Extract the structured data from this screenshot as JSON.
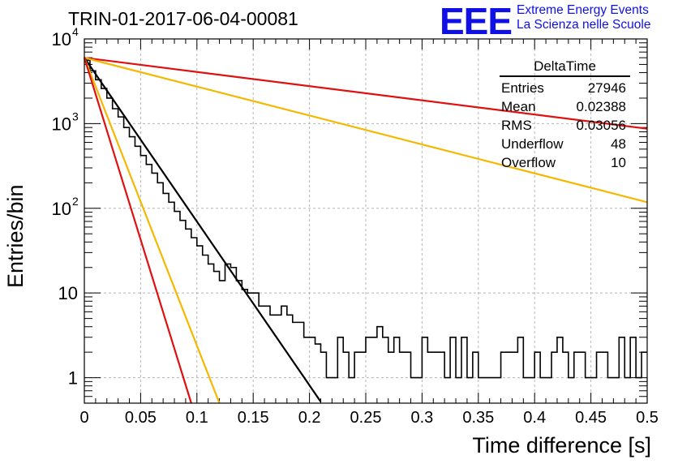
{
  "header": {
    "title": "TRIN-01-2017-06-04-00081",
    "logo": "EEE",
    "logo_line1": "Extreme Energy Events",
    "logo_line2": "La Scienza nelle Scuole"
  },
  "stats": {
    "name": "DeltaTime",
    "rows": [
      {
        "label": "Entries",
        "value": "27946"
      },
      {
        "label": "Mean",
        "value": "0.02388"
      },
      {
        "label": "RMS",
        "value": "0.03056"
      },
      {
        "label": "Underflow",
        "value": "48"
      },
      {
        "label": "Overflow",
        "value": "10"
      }
    ]
  },
  "chart_data": {
    "type": "line",
    "title": "TRIN-01-2017-06-04-00081",
    "xlabel": "Time difference [s]",
    "ylabel": "Entries/bin",
    "xlim": [
      0,
      0.5
    ],
    "ylim": [
      0.5,
      10000
    ],
    "y_scale": "log",
    "grid": true,
    "x_ticks": [
      "0",
      "0.05",
      "0.1",
      "0.15",
      "0.2",
      "0.25",
      "0.3",
      "0.35",
      "0.4",
      "0.45",
      "0.5"
    ],
    "y_ticks": [
      {
        "value": 1,
        "label": "1"
      },
      {
        "value": 10,
        "label": "10"
      },
      {
        "value": 100,
        "label": "10",
        "exp": "2"
      },
      {
        "value": 1000,
        "label": "10",
        "exp": "3"
      },
      {
        "value": 10000,
        "label": "10",
        "exp": "4"
      }
    ],
    "histogram": {
      "bin_width": 0.005,
      "color": "#000000",
      "counts": [
        5600,
        4200,
        3300,
        2600,
        2000,
        1500,
        1200,
        900,
        700,
        540,
        420,
        330,
        260,
        200,
        150,
        118,
        92,
        72,
        57,
        45,
        36,
        28,
        22,
        18,
        14,
        22,
        20,
        14,
        11,
        10,
        10,
        7,
        7,
        5.5,
        5.5,
        7,
        5.5,
        4.5,
        4.5,
        3,
        3,
        2.5,
        2,
        1,
        1,
        3,
        2,
        1,
        2,
        2,
        3,
        3,
        4,
        3,
        2,
        3,
        2,
        2,
        1,
        1,
        3,
        2,
        2,
        2,
        1,
        3,
        1,
        3,
        1,
        2,
        1,
        1,
        1,
        1,
        2,
        2,
        2,
        3,
        1,
        1,
        2,
        1,
        1,
        2,
        3,
        2,
        1,
        2,
        2,
        1,
        1,
        2,
        2,
        1,
        1,
        3,
        1,
        3,
        1,
        2
      ]
    },
    "fits": [
      {
        "color": "#e01010",
        "x": [
          0,
          0.5
        ],
        "y": [
          6000,
          870
        ]
      },
      {
        "color": "#f5b800",
        "x": [
          0,
          0.5
        ],
        "y": [
          6000,
          118
        ]
      },
      {
        "color": "#000000",
        "x": [
          0,
          0.21
        ],
        "y": [
          6000,
          0.52
        ]
      },
      {
        "color": "#f5b800",
        "x": [
          0,
          0.12
        ],
        "y": [
          6000,
          0.5
        ]
      },
      {
        "color": "#e01010",
        "x": [
          0,
          0.095
        ],
        "y": [
          6000,
          0.5
        ]
      }
    ]
  }
}
